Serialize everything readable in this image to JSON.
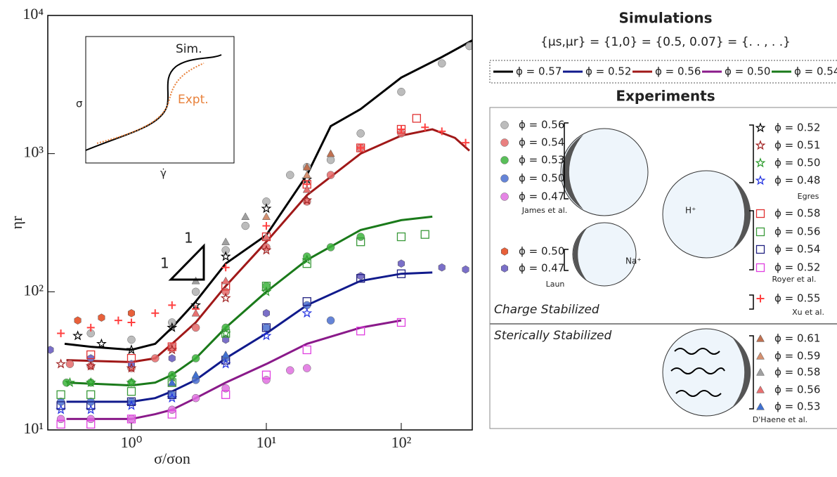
{
  "chart_data": {
    "type": "scatter",
    "x_label": "σ/σon",
    "y_label": "ηr",
    "log_x": true,
    "log_y": true,
    "xlim": [
      0.24,
      336
    ],
    "ylim": [
      10,
      10000
    ],
    "xticks": [
      {
        "value": 1,
        "label": "10⁰"
      },
      {
        "value": 10,
        "label": "10¹"
      },
      {
        "value": 100,
        "label": "10²"
      }
    ],
    "yticks": [
      {
        "value": 10,
        "label": "10¹"
      },
      {
        "value": 100,
        "label": "10²"
      },
      {
        "value": 1000,
        "label": "10³"
      },
      {
        "value": 10000,
        "label": "10⁴"
      }
    ],
    "series": [
      {
        "name": "ϕ = 0.57",
        "kind": "line",
        "color": "#000000",
        "x": [
          0.32,
          0.5,
          1,
          1.5,
          2,
          3,
          5,
          10,
          20,
          30,
          50,
          100,
          200,
          336
        ],
        "values": [
          42,
          40,
          38,
          42,
          55,
          85,
          160,
          257,
          700,
          1580,
          2100,
          3550,
          5000,
          6600
        ]
      },
      {
        "name": "ϕ = 0.52",
        "kind": "line",
        "color": "#101a8c",
        "x": [
          0.33,
          1,
          1.5,
          2,
          3,
          5,
          10,
          20,
          50,
          100,
          170
        ],
        "values": [
          16,
          16,
          17,
          19,
          23,
          33,
          50,
          80,
          120,
          135,
          138
        ]
      },
      {
        "name": "ϕ = 0.56",
        "kind": "line",
        "color": "#a01818",
        "x": [
          0.33,
          1,
          1.5,
          2,
          3,
          5,
          10,
          20,
          50,
          100,
          170,
          250,
          320
        ],
        "values": [
          32,
          31,
          33,
          42,
          60,
          110,
          230,
          500,
          1000,
          1350,
          1500,
          1300,
          1050
        ]
      },
      {
        "name": "ϕ = 0.50",
        "kind": "line",
        "color": "#8a1a8a",
        "x": [
          0.33,
          1,
          1.5,
          2,
          3,
          5,
          10,
          20,
          50,
          100
        ],
        "values": [
          12,
          12,
          13,
          14,
          17,
          22,
          30,
          42,
          55,
          62
        ]
      },
      {
        "name": "ϕ = 0.54",
        "kind": "line",
        "color": "#1a7a1a",
        "x": [
          0.33,
          1,
          1.5,
          2,
          3,
          5,
          10,
          20,
          50,
          100,
          170
        ],
        "values": [
          22,
          21,
          22,
          25,
          33,
          55,
          100,
          170,
          280,
          330,
          350
        ]
      },
      {
        "name": "ϕ = 0.56",
        "marker": "circle",
        "color": "#b0b0b0",
        "x": [
          0.5,
          1,
          2,
          3,
          5,
          7,
          10,
          15,
          20,
          30,
          50,
          100,
          200,
          320
        ],
        "values": [
          50,
          45,
          60,
          100,
          200,
          300,
          450,
          700,
          800,
          900,
          1400,
          2800,
          4500,
          6000
        ]
      },
      {
        "name": "ϕ = 0.54",
        "marker": "circle",
        "color": "#e56a6a",
        "x": [
          0.35,
          0.5,
          1,
          1.5,
          2,
          3,
          5,
          10,
          20,
          30,
          50,
          100
        ],
        "values": [
          30,
          29,
          28,
          33,
          40,
          55,
          100,
          210,
          450,
          700,
          1100,
          1400
        ]
      },
      {
        "name": "ϕ = 0.53",
        "marker": "circle",
        "color": "#3cb43c",
        "x": [
          0.33,
          0.5,
          1,
          2,
          3,
          5,
          10,
          20,
          30,
          50
        ],
        "values": [
          22,
          22,
          22,
          25,
          33,
          55,
          110,
          180,
          210,
          250
        ]
      },
      {
        "name": "ϕ = 0.50",
        "marker": "circle",
        "color": "#4a6fd0",
        "x": [
          0.3,
          0.5,
          1,
          2,
          3,
          5,
          10,
          20,
          30
        ],
        "values": [
          16,
          16,
          16,
          18,
          23,
          33,
          55,
          80,
          62
        ]
      },
      {
        "name": "ϕ = 0.47",
        "marker": "circle",
        "color": "#e070e0",
        "x": [
          0.3,
          0.5,
          1,
          2,
          3,
          5,
          10,
          15,
          20
        ],
        "values": [
          12,
          12,
          12,
          14,
          17,
          20,
          23,
          27,
          28
        ]
      },
      {
        "name": "ϕ = 0.50",
        "marker": "hexagon",
        "color": "#e8603a",
        "x": [
          0.4,
          0.6,
          1
        ],
        "values": [
          62,
          65,
          70
        ]
      },
      {
        "name": "ϕ = 0.47",
        "marker": "hexagon",
        "color": "#7a6fc8",
        "x": [
          0.25,
          0.5,
          1,
          2,
          5,
          10,
          50,
          100,
          200,
          300
        ],
        "values": [
          38,
          33,
          30,
          33,
          45,
          70,
          130,
          160,
          150,
          145
        ]
      },
      {
        "name": "ϕ = 0.52",
        "marker": "star",
        "color": "#000000",
        "x": [
          0.4,
          0.6,
          1,
          2,
          3,
          5,
          10,
          20
        ],
        "values": [
          48,
          42,
          38,
          55,
          80,
          180,
          400,
          650
        ]
      },
      {
        "name": "ϕ = 0.51",
        "marker": "star",
        "color": "#a02020",
        "x": [
          0.3,
          0.5,
          1,
          2,
          5,
          10,
          20
        ],
        "values": [
          30,
          29,
          28,
          38,
          90,
          200,
          460
        ]
      },
      {
        "name": "ϕ = 0.50",
        "marker": "star",
        "color": "#2a9a2a",
        "x": [
          0.35,
          0.5,
          1,
          2,
          5,
          10,
          20
        ],
        "values": [
          22,
          22,
          22,
          24,
          50,
          100,
          170
        ]
      },
      {
        "name": "ϕ = 0.48",
        "marker": "star",
        "color": "#2030e0",
        "x": [
          0.3,
          0.5,
          1,
          2,
          5,
          10,
          20
        ],
        "values": [
          14,
          14,
          15,
          17,
          30,
          48,
          70
        ]
      },
      {
        "name": "ϕ = 0.58",
        "marker": "square",
        "color": "#e03030",
        "x": [
          0.5,
          1,
          2,
          5,
          10,
          20,
          50,
          100,
          130
        ],
        "values": [
          35,
          33,
          40,
          110,
          250,
          600,
          1100,
          1500,
          1800
        ]
      },
      {
        "name": "ϕ = 0.56",
        "marker": "square",
        "color": "#3a9a3a",
        "x": [
          0.3,
          0.5,
          1,
          2,
          5,
          10,
          20,
          50,
          100,
          150
        ],
        "values": [
          18,
          18,
          19,
          22,
          50,
          110,
          160,
          230,
          250,
          260
        ]
      },
      {
        "name": "ϕ = 0.54",
        "marker": "square",
        "color": "#202080",
        "x": [
          0.3,
          0.5,
          1,
          2,
          5,
          10,
          20,
          50,
          100
        ],
        "values": [
          15,
          15,
          16,
          18,
          32,
          55,
          85,
          125,
          135
        ]
      },
      {
        "name": "ϕ = 0.52",
        "marker": "square",
        "color": "#e040e0",
        "x": [
          0.3,
          0.5,
          1,
          2,
          5,
          10,
          20,
          50,
          100
        ],
        "values": [
          11,
          11,
          12,
          13,
          18,
          25,
          38,
          52,
          60
        ]
      },
      {
        "name": "ϕ = 0.55",
        "marker": "plus",
        "color": "#ff4040",
        "x": [
          0.3,
          0.5,
          0.8,
          1,
          1.5,
          2,
          3,
          5,
          10,
          20,
          50,
          100,
          150,
          200,
          300
        ],
        "values": [
          50,
          55,
          62,
          60,
          70,
          80,
          75,
          150,
          300,
          600,
          1100,
          1500,
          1550,
          1450,
          1200
        ]
      },
      {
        "name": "ϕ = 0.61",
        "marker": "triangle",
        "color": "#c07050",
        "x": [
          20,
          30
        ],
        "values": [
          800,
          1000
        ]
      },
      {
        "name": "ϕ = 0.59",
        "marker": "triangle",
        "color": "#d49070",
        "x": [
          10,
          20
        ],
        "values": [
          350,
          700
        ]
      },
      {
        "name": "ϕ = 0.58",
        "marker": "triangle",
        "color": "#a0a0a0",
        "x": [
          3,
          5,
          7
        ],
        "values": [
          120,
          230,
          350
        ]
      },
      {
        "name": "ϕ = 0.56",
        "marker": "triangle",
        "color": "#e87070",
        "x": [
          3,
          5,
          10,
          20
        ],
        "values": [
          70,
          120,
          250,
          550
        ]
      },
      {
        "name": "ϕ = 0.53",
        "marker": "triangle",
        "color": "#4070d0",
        "x": [
          2,
          3,
          5
        ],
        "values": [
          22,
          25,
          35
        ]
      }
    ],
    "inset": {
      "sim": "Sim.",
      "expt": "Expt.",
      "y_label": "σ",
      "x_label": "γ̇"
    },
    "slope_labels": [
      "1",
      "1"
    ],
    "legend": {
      "simulations": "Simulations",
      "params": "{μs,μr} = {1,0} = {0.5, 0.07} = {. . , . .}",
      "experiments": "Experiments",
      "charge": "Charge Stabilized",
      "steric": "Sterically Stabilized",
      "groups": [
        "James et al.",
        "Laun",
        "Egres",
        "Royer et al.",
        "Xu et al.",
        "D'Haene et al."
      ],
      "chem": [
        "H⁺",
        "Na⁺"
      ]
    }
  }
}
